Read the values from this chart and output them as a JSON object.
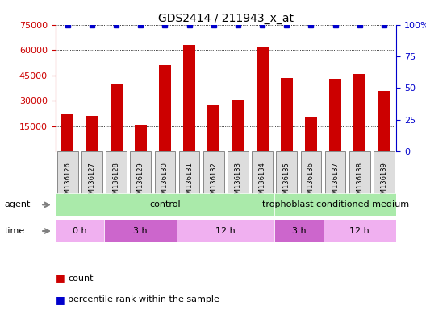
{
  "title": "GDS2414 / 211943_x_at",
  "samples": [
    "GSM136126",
    "GSM136127",
    "GSM136128",
    "GSM136129",
    "GSM136130",
    "GSM136131",
    "GSM136132",
    "GSM136133",
    "GSM136134",
    "GSM136135",
    "GSM136136",
    "GSM136137",
    "GSM136138",
    "GSM136139"
  ],
  "counts": [
    22000,
    21000,
    40000,
    16000,
    51000,
    63000,
    27000,
    30500,
    61500,
    43500,
    20000,
    43000,
    46000,
    36000
  ],
  "percentile_vals": [
    100,
    100,
    100,
    100,
    100,
    100,
    100,
    100,
    100,
    100,
    100,
    100,
    100,
    100
  ],
  "bar_color": "#cc0000",
  "dot_color": "#0000cc",
  "ylim_left": [
    0,
    75000
  ],
  "ylim_right": [
    0,
    100
  ],
  "yticks_left": [
    15000,
    30000,
    45000,
    60000,
    75000
  ],
  "yticks_right": [
    0,
    25,
    50,
    75,
    100
  ],
  "ytick_labels_left": [
    "15000",
    "30000",
    "45000",
    "60000",
    "75000"
  ],
  "ytick_labels_right": [
    "0",
    "25",
    "50",
    "75",
    "100%"
  ],
  "agent_groups": [
    {
      "label": "control",
      "start": 0,
      "end": 9,
      "color": "#aaeaaa"
    },
    {
      "label": "trophoblast conditioned medium",
      "start": 9,
      "end": 14,
      "color": "#aaeaaa"
    }
  ],
  "time_groups": [
    {
      "label": "0 h",
      "start": 0,
      "end": 2,
      "color": "#f0b0f0"
    },
    {
      "label": "3 h",
      "start": 2,
      "end": 5,
      "color": "#cc66cc"
    },
    {
      "label": "12 h",
      "start": 5,
      "end": 9,
      "color": "#f0b0f0"
    },
    {
      "label": "3 h",
      "start": 9,
      "end": 11,
      "color": "#cc66cc"
    },
    {
      "label": "12 h",
      "start": 11,
      "end": 14,
      "color": "#f0b0f0"
    }
  ],
  "bg_color": "#ffffff",
  "bar_width": 0.5,
  "label_box_color": "#dddddd",
  "label_box_edge": "#888888"
}
